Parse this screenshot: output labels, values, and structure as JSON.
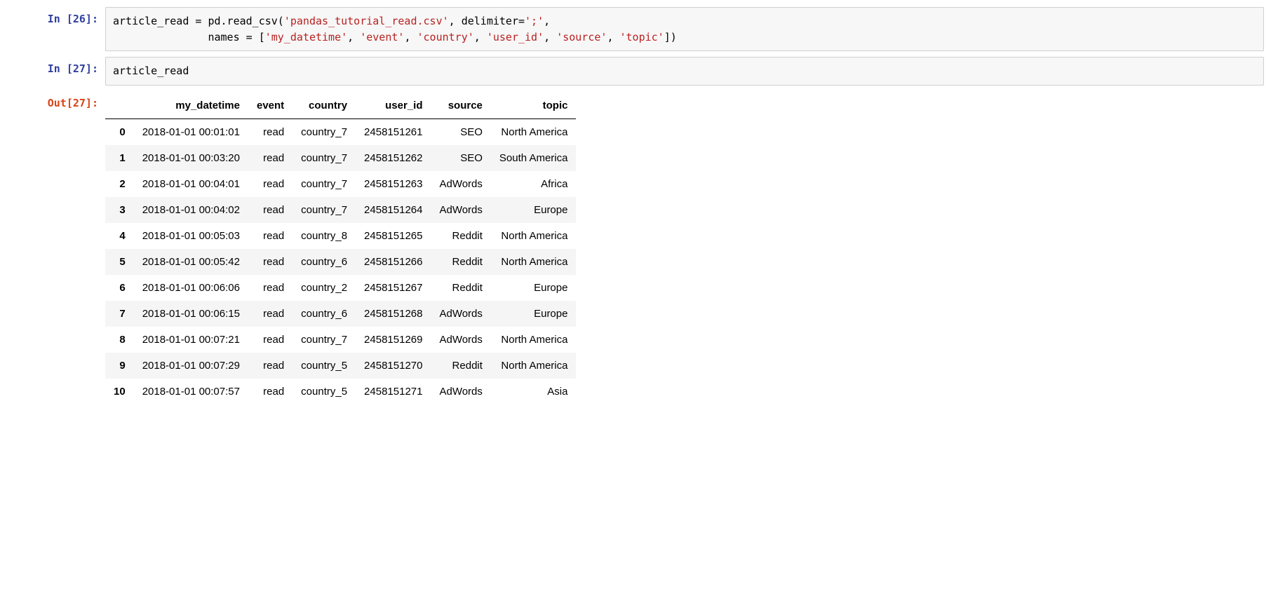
{
  "cells": {
    "in26": {
      "prompt": "In [26]:",
      "code_line1_pre": "article_read = pd.read_csv(",
      "code_line1_str1": "'pandas_tutorial_read.csv'",
      "code_line1_mid": ", delimiter=",
      "code_line1_str2": "';'",
      "code_line1_post": ",",
      "code_line2_indent": "               names = [",
      "code_line2_s1": "'my_datetime'",
      "code_line2_s2": "'event'",
      "code_line2_s3": "'country'",
      "code_line2_s4": "'user_id'",
      "code_line2_s5": "'source'",
      "code_line2_s6": "'topic'",
      "code_line2_post": "])"
    },
    "in27": {
      "prompt": "In [27]:",
      "code": "article_read"
    },
    "out27": {
      "prompt": "Out[27]:"
    }
  },
  "dataframe": {
    "columns": [
      "my_datetime",
      "event",
      "country",
      "user_id",
      "source",
      "topic"
    ],
    "index": [
      "0",
      "1",
      "2",
      "3",
      "4",
      "5",
      "6",
      "7",
      "8",
      "9",
      "10"
    ],
    "rows": [
      [
        "2018-01-01 00:01:01",
        "read",
        "country_7",
        "2458151261",
        "SEO",
        "North America"
      ],
      [
        "2018-01-01 00:03:20",
        "read",
        "country_7",
        "2458151262",
        "SEO",
        "South America"
      ],
      [
        "2018-01-01 00:04:01",
        "read",
        "country_7",
        "2458151263",
        "AdWords",
        "Africa"
      ],
      [
        "2018-01-01 00:04:02",
        "read",
        "country_7",
        "2458151264",
        "AdWords",
        "Europe"
      ],
      [
        "2018-01-01 00:05:03",
        "read",
        "country_8",
        "2458151265",
        "Reddit",
        "North America"
      ],
      [
        "2018-01-01 00:05:42",
        "read",
        "country_6",
        "2458151266",
        "Reddit",
        "North America"
      ],
      [
        "2018-01-01 00:06:06",
        "read",
        "country_2",
        "2458151267",
        "Reddit",
        "Europe"
      ],
      [
        "2018-01-01 00:06:15",
        "read",
        "country_6",
        "2458151268",
        "AdWords",
        "Europe"
      ],
      [
        "2018-01-01 00:07:21",
        "read",
        "country_7",
        "2458151269",
        "AdWords",
        "North America"
      ],
      [
        "2018-01-01 00:07:29",
        "read",
        "country_5",
        "2458151270",
        "Reddit",
        "North America"
      ],
      [
        "2018-01-01 00:07:57",
        "read",
        "country_5",
        "2458151271",
        "AdWords",
        "Asia"
      ]
    ],
    "header_bg": "#ffffff",
    "row_odd_bg": "#ffffff",
    "row_even_bg": "#f5f5f5",
    "border_color": "#000000",
    "font_size": 15
  },
  "colors": {
    "prompt_in": "#303f9f",
    "prompt_out": "#d84315",
    "code_bg": "#f7f7f7",
    "code_border": "#cfcfcf",
    "string_color": "#ba2121"
  }
}
